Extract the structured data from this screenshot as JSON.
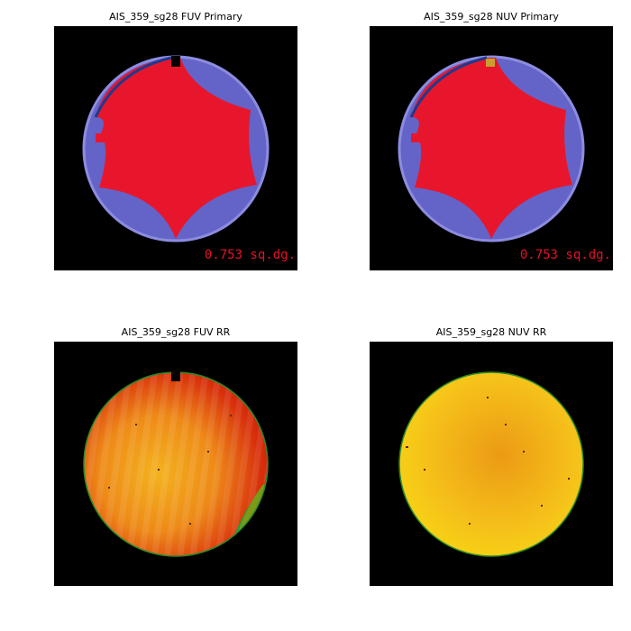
{
  "panels": [
    {
      "title": "AIS_359_sg28 FUV Primary",
      "area": "0.753 sq.dg."
    },
    {
      "title": "AIS_359_sg28 NUV Primary",
      "area": "0.753 sq.dg."
    },
    {
      "title": "AIS_359_sg28 FUV RR"
    },
    {
      "title": "AIS_359_sg28 NUV RR"
    }
  ]
}
